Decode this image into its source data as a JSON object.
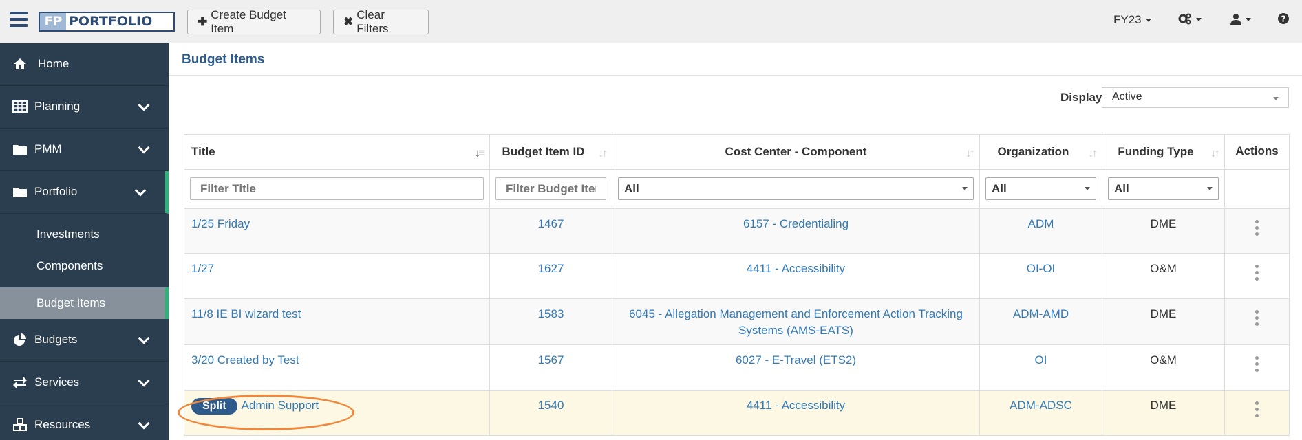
{
  "topbar": {
    "logo_fp": "FP",
    "logo_text": "PORTFOLIO",
    "create_button": "Create Budget Item",
    "clear_button": "Clear Filters",
    "fiscal_year": "FY23"
  },
  "sidebar": {
    "items": [
      {
        "label": "Home"
      },
      {
        "label": "Planning"
      },
      {
        "label": "PMM"
      },
      {
        "label": "Portfolio"
      },
      {
        "label": "Budgets"
      },
      {
        "label": "Services"
      },
      {
        "label": "Resources"
      }
    ],
    "sub_items": [
      {
        "label": "Investments"
      },
      {
        "label": "Components"
      },
      {
        "label": "Budget Items"
      }
    ]
  },
  "page": {
    "title": "Budget Items",
    "display_label": "Display",
    "display_value": "Active"
  },
  "table": {
    "headers": [
      "Title",
      "Budget Item ID",
      "Cost Center - Component",
      "Organization",
      "Funding Type",
      "Actions"
    ],
    "filters": {
      "title_placeholder": "Filter Title",
      "id_placeholder": "Filter Budget Item ID",
      "cost_center": "All",
      "organization": "All",
      "funding_type": "All"
    },
    "rows": [
      {
        "title": "1/25 Friday",
        "id": "1467",
        "cost_center": "6157 - Credentialing",
        "org": "ADM",
        "funding": "DME"
      },
      {
        "title": "1/27",
        "id": "1627",
        "cost_center": "4411 - Accessibility",
        "org": "OI-OI",
        "funding": "O&M"
      },
      {
        "title": "11/8 IE BI wizard test",
        "id": "1583",
        "cost_center": "6045 - Allegation Management and Enforcement Action Tracking Systems (AMS-EATS)",
        "org": "ADM-AMD",
        "funding": "DME"
      },
      {
        "title": "3/20 Created by Test",
        "id": "1567",
        "cost_center": "6027 - E-Travel (ETS2)",
        "org": "OI",
        "funding": "O&M"
      },
      {
        "badge": "Split",
        "title": "Admin Support",
        "id": "1540",
        "cost_center": "4411 - Accessibility",
        "org": "ADM-ADSC",
        "funding": "DME"
      }
    ]
  },
  "colors": {
    "sidebar_bg": "#2b3e50",
    "accent_green": "#2bb37a",
    "link_blue": "#337ab7",
    "title_blue": "#2d5b8c",
    "highlight_row": "#fcf8e3",
    "annotation_orange": "#f0873a"
  }
}
